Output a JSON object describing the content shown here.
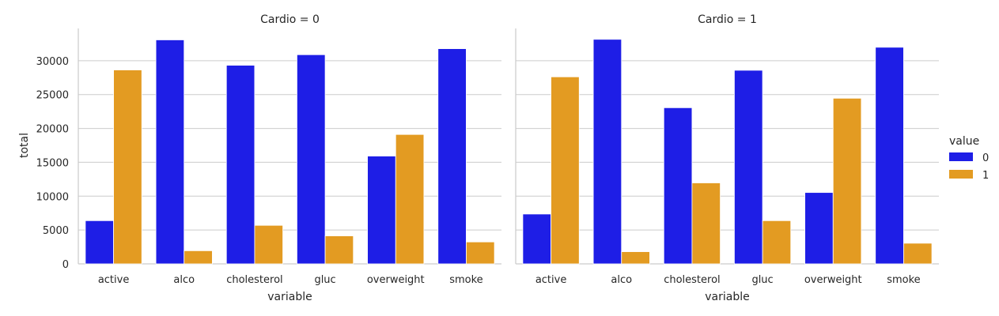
{
  "chart_data": {
    "type": "bar",
    "xlabel": "variable",
    "ylabel": "total",
    "ylim": [
      0,
      35000
    ],
    "yticks": [
      0,
      5000,
      10000,
      15000,
      20000,
      25000,
      30000
    ],
    "grid": "horizontal",
    "legend_title": "value",
    "legend_position": "right",
    "categories": [
      "active",
      "alco",
      "cholesterol",
      "gluc",
      "overweight",
      "smoke"
    ],
    "hue_levels": [
      {
        "label": "0",
        "color": "#1e1ee6"
      },
      {
        "label": "1",
        "color": "#e39b22"
      }
    ],
    "panels": [
      {
        "title": "Cardio = 0",
        "series": [
          {
            "hue": "0",
            "values": [
              6380,
              33080,
              29330,
              30890,
              15920,
              31780
            ]
          },
          {
            "hue": "1",
            "values": [
              28640,
              1940,
              5690,
              4130,
              19110,
              3240
            ]
          }
        ]
      },
      {
        "title": "Cardio = 1",
        "series": [
          {
            "hue": "0",
            "values": [
              7360,
              33160,
              23060,
              28590,
              10540,
              31990
            ]
          },
          {
            "hue": "1",
            "values": [
              27620,
              1800,
              11960,
              6380,
              24460,
              3050
            ]
          }
        ]
      }
    ]
  }
}
